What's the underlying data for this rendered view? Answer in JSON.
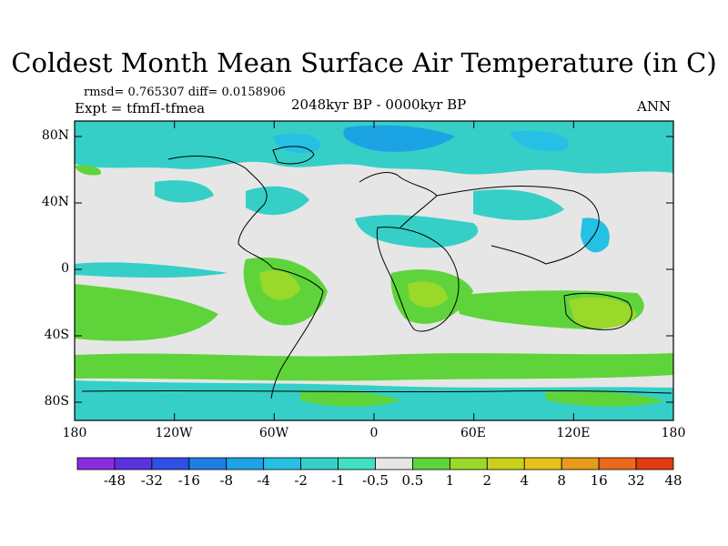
{
  "title": "Coldest Month Mean Surface Air Temperature (in C)",
  "stats": "rmsd= 0.765307 diff= 0.0158906",
  "experiment": "Expt = tfmfI-tfmea",
  "period": "2048kyr BP - 0000kyr BP",
  "season": "ANN",
  "map": {
    "lat_labels": [
      "80N",
      "40N",
      "0",
      "40S",
      "80S"
    ],
    "lon_labels": [
      "180",
      "120W",
      "60W",
      "0",
      "60E",
      "120E",
      "180"
    ]
  },
  "colorbar": {
    "labels": [
      "-48",
      "-32",
      "-16",
      "-8",
      "-4",
      "-2",
      "-1",
      "-0.5",
      "0.5",
      "1",
      "2",
      "4",
      "8",
      "16",
      "32",
      "48"
    ],
    "colors": [
      "#8a2be2",
      "#5a32e0",
      "#2f4fe6",
      "#1f7fe0",
      "#1ba3e3",
      "#25c0e3",
      "#35cfc8",
      "#40e0c0",
      "#e6e6e6",
      "#5fd43a",
      "#9ad82a",
      "#c8d21a",
      "#e6c21a",
      "#e89a1a",
      "#e86a1a",
      "#e23a12"
    ]
  }
}
